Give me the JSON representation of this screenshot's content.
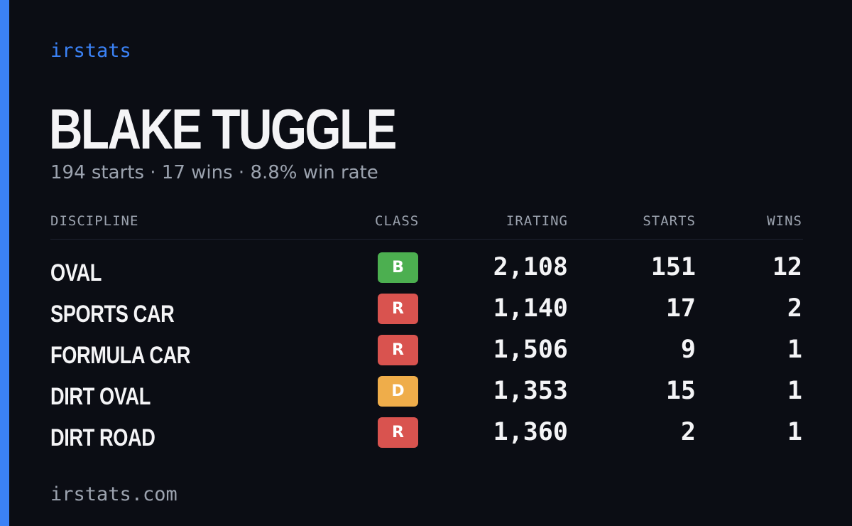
{
  "brand": "irstats",
  "driver": {
    "name": "BLAKE TUGGLE",
    "summary": "194 starts · 17 wins · 8.8% win rate"
  },
  "table": {
    "headers": {
      "discipline": "DISCIPLINE",
      "class": "CLASS",
      "irating": "IRATING",
      "starts": "STARTS",
      "wins": "WINS"
    },
    "rows": [
      {
        "discipline": "OVAL",
        "class": "B",
        "irating": "2,108",
        "starts": "151",
        "wins": "12"
      },
      {
        "discipline": "SPORTS CAR",
        "class": "R",
        "irating": "1,140",
        "starts": "17",
        "wins": "2"
      },
      {
        "discipline": "FORMULA CAR",
        "class": "R",
        "irating": "1,506",
        "starts": "9",
        "wins": "1"
      },
      {
        "discipline": "DIRT OVAL",
        "class": "D",
        "irating": "1,353",
        "starts": "15",
        "wins": "1"
      },
      {
        "discipline": "DIRT ROAD",
        "class": "R",
        "irating": "1,360",
        "starts": "2",
        "wins": "1"
      }
    ]
  },
  "footer": "irstats.com",
  "colors": {
    "accent": "#3b82f6",
    "background": "#0b0d14",
    "class_b": "#4caf50",
    "class_r": "#d9534f",
    "class_d": "#efad4a"
  }
}
